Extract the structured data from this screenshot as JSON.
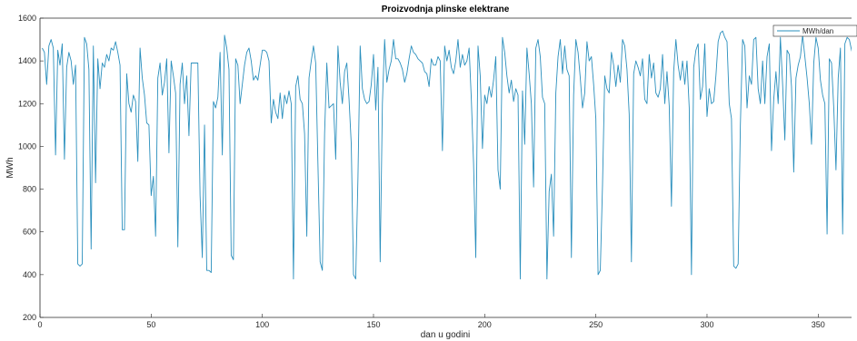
{
  "chart_data": {
    "type": "line",
    "title": "Proizvodnja plinske elektrane",
    "xlabel": "dan u godini",
    "ylabel": "MWh",
    "xlim": [
      0,
      365
    ],
    "ylim": [
      200,
      1600
    ],
    "xticks": [
      0,
      50,
      100,
      150,
      200,
      250,
      300,
      350
    ],
    "yticks": [
      200,
      400,
      600,
      800,
      1000,
      1200,
      1400,
      1600
    ],
    "grid": false,
    "legend_position": "top-right",
    "series": [
      {
        "name": "MWh/dan",
        "color": "#2a8fbd",
        "values": [
          1460,
          1440,
          1290,
          1470,
          1500,
          1460,
          960,
          1450,
          1380,
          1480,
          940,
          1370,
          1440,
          1400,
          1290,
          1380,
          450,
          440,
          450,
          1510,
          1480,
          1360,
          520,
          1470,
          830,
          1410,
          1270,
          1390,
          1370,
          1430,
          1400,
          1460,
          1450,
          1490,
          1440,
          1380,
          610,
          610,
          1340,
          1200,
          1160,
          1240,
          1210,
          930,
          1460,
          1320,
          1240,
          1110,
          1100,
          770,
          860,
          580,
          1320,
          1390,
          1240,
          1300,
          1410,
          970,
          1400,
          1330,
          1250,
          530,
          1290,
          1390,
          1200,
          1330,
          1050,
          1390,
          1390,
          1390,
          1390,
          770,
          480,
          1100,
          420,
          420,
          410,
          1210,
          1180,
          1230,
          1440,
          960,
          1520,
          1460,
          1360,
          490,
          470,
          1410,
          1380,
          1200,
          1290,
          1380,
          1440,
          1460,
          1400,
          1310,
          1330,
          1310,
          1380,
          1450,
          1450,
          1440,
          1400,
          1110,
          1220,
          1160,
          1130,
          1250,
          1130,
          1240,
          1200,
          1260,
          1200,
          380,
          1280,
          1330,
          1220,
          1200,
          1060,
          580,
          1320,
          1400,
          1470,
          1390,
          920,
          460,
          420,
          1060,
          1390,
          1180,
          1190,
          1200,
          940,
          1470,
          1300,
          1200,
          1350,
          1390,
          1220,
          1010,
          400,
          380,
          850,
          1470,
          1270,
          1220,
          1200,
          1210,
          1290,
          1430,
          1170,
          1370,
          460,
          1200,
          1500,
          1300,
          1360,
          1400,
          1500,
          1410,
          1410,
          1390,
          1360,
          1300,
          1340,
          1410,
          1470,
          1440,
          1430,
          1410,
          1400,
          1390,
          1350,
          1340,
          1280,
          1410,
          1380,
          1380,
          1420,
          1400,
          980,
          1470,
          1400,
          1450,
          1370,
          1340,
          1400,
          1500,
          1370,
          1430,
          1380,
          1400,
          1460,
          1220,
          920,
          480,
          1470,
          1330,
          990,
          1240,
          1200,
          1280,
          1230,
          1310,
          1420,
          890,
          800,
          1510,
          1440,
          1330,
          1250,
          1310,
          1210,
          1270,
          1240,
          380,
          1260,
          1010,
          1460,
          1340,
          1200,
          810,
          1460,
          1500,
          1420,
          1230,
          1200,
          380,
          790,
          870,
          580,
          1250,
          1420,
          1500,
          1340,
          1470,
          1360,
          1330,
          480,
          1240,
          1500,
          1440,
          1320,
          1180,
          1250,
          1490,
          1400,
          1420,
          1290,
          1130,
          400,
          420,
          820,
          1330,
          1270,
          1250,
          1440,
          1380,
          1280,
          1380,
          1300,
          1500,
          1470,
          1360,
          1150,
          460,
          1340,
          1400,
          1370,
          1330,
          1410,
          1220,
          1200,
          1430,
          1320,
          1390,
          1250,
          1230,
          1270,
          1430,
          1200,
          1350,
          1190,
          720,
          1350,
          1500,
          1380,
          1310,
          1400,
          1290,
          1400,
          1180,
          400,
          1370,
          1450,
          1480,
          1220,
          1280,
          1480,
          1140,
          1270,
          1200,
          1210,
          1330,
          1490,
          1530,
          1540,
          1510,
          1490,
          1200,
          1130,
          440,
          430,
          450,
          1100,
          1500,
          1470,
          1180,
          1330,
          1290,
          1500,
          1510,
          1270,
          1200,
          1400,
          1200,
          1420,
          1480,
          980,
          1220,
          1350,
          1200,
          1510,
          1290,
          1030,
          1450,
          1430,
          1280,
          880,
          1320,
          1380,
          1420,
          1520,
          1420,
          1320,
          1200,
          1010,
          1390,
          1510,
          1460,
          1310,
          1240,
          1200,
          590,
          1410,
          1390,
          1180,
          890,
          1320,
          1460,
          590,
          1480,
          1510,
          1500,
          1450,
          1410,
          1500,
          1330,
          1380,
          1460,
          1360,
          840,
          800,
          1400,
          1050,
          1480,
          1520,
          1400,
          1300,
          1200
        ]
      }
    ]
  }
}
